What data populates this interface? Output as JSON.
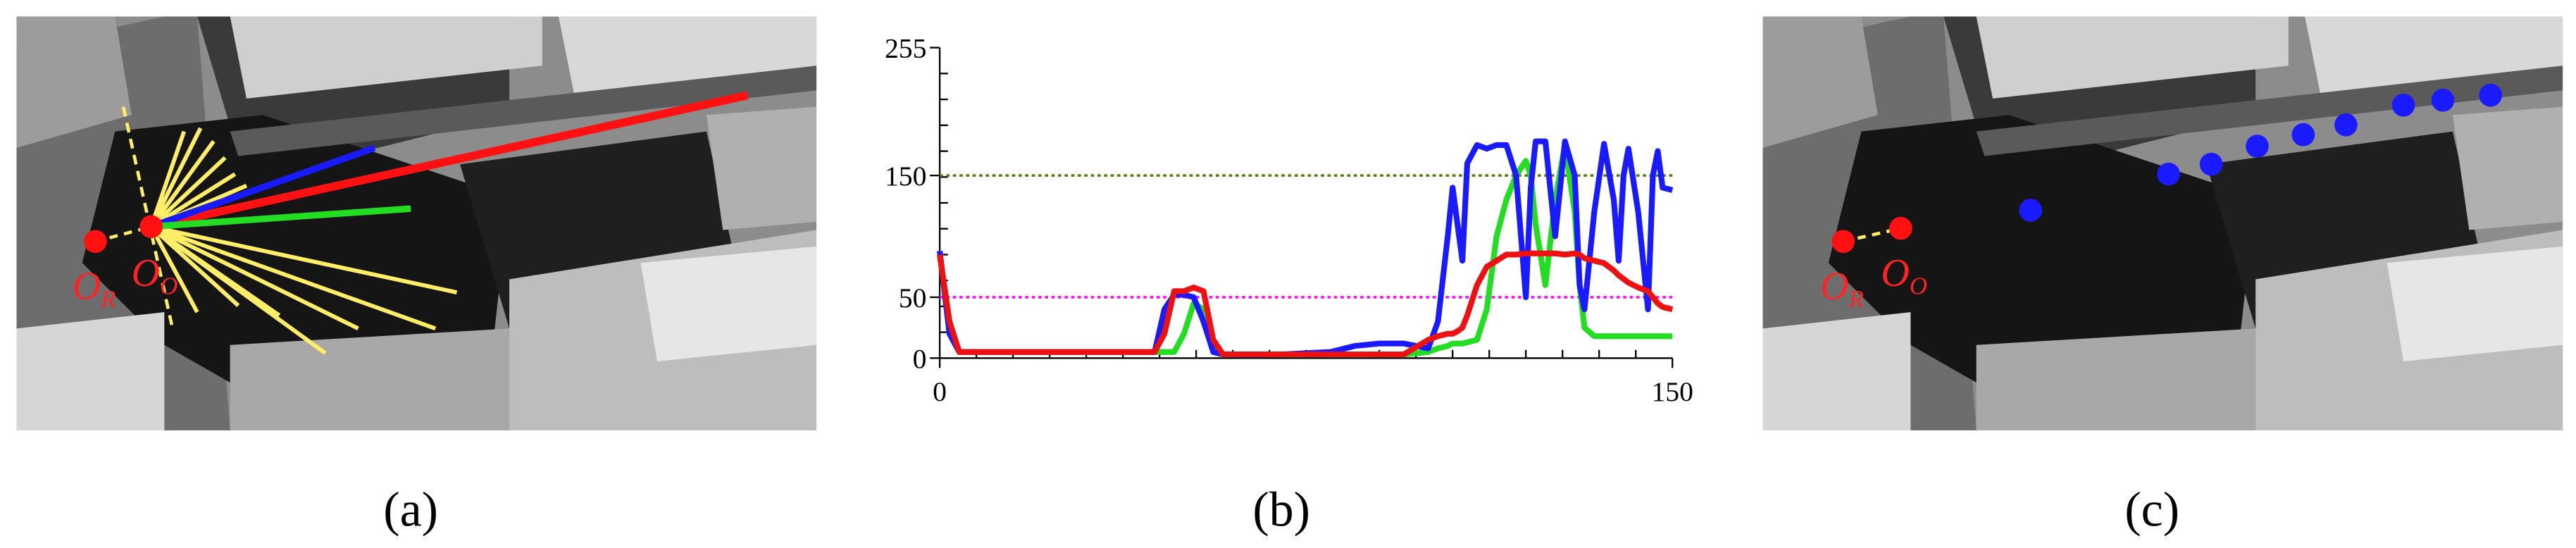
{
  "panel_labels": [
    "(a)",
    "(b)",
    "(c)"
  ],
  "origin_labels": {
    "reference": {
      "main": "O",
      "sub": "R"
    },
    "observer": {
      "main": "O",
      "sub": "O"
    }
  },
  "chart_data": {
    "type": "line",
    "x": [
      0,
      2,
      4,
      10,
      20,
      30,
      40,
      44,
      46,
      48,
      50,
      52,
      54,
      56,
      58,
      60,
      70,
      80,
      85,
      90,
      95,
      100,
      102,
      104,
      105,
      106,
      107,
      108,
      110,
      112,
      114,
      116,
      118,
      120,
      121,
      122,
      124,
      126,
      128,
      130,
      131,
      132,
      134,
      136,
      138,
      139,
      140,
      141,
      143,
      145,
      146,
      147,
      148,
      150
    ],
    "series": [
      {
        "color": "#1a1aff",
        "values": [
          88,
          20,
          5,
          5,
          5,
          5,
          5,
          5,
          40,
          52,
          52,
          50,
          30,
          5,
          3,
          3,
          3,
          5,
          10,
          12,
          12,
          8,
          30,
          100,
          140,
          110,
          80,
          160,
          175,
          172,
          175,
          175,
          150,
          50,
          140,
          178,
          178,
          100,
          178,
          150,
          60,
          40,
          120,
          176,
          130,
          80,
          150,
          172,
          120,
          40,
          150,
          170,
          140,
          138
        ]
      },
      {
        "color": "#22dd22",
        "values": [
          88,
          20,
          5,
          5,
          5,
          5,
          5,
          5,
          5,
          5,
          20,
          45,
          40,
          8,
          3,
          3,
          3,
          3,
          3,
          3,
          3,
          5,
          8,
          10,
          12,
          12,
          12,
          13,
          15,
          40,
          100,
          130,
          150,
          162,
          150,
          110,
          60,
          130,
          175,
          120,
          60,
          25,
          18,
          18,
          18,
          18,
          18,
          18,
          18,
          18,
          18,
          18,
          18,
          18
        ]
      },
      {
        "color": "#ee1111",
        "values": [
          85,
          30,
          5,
          5,
          5,
          5,
          5,
          5,
          20,
          55,
          55,
          58,
          55,
          15,
          3,
          3,
          3,
          3,
          3,
          3,
          3,
          15,
          18,
          20,
          20,
          22,
          25,
          35,
          60,
          75,
          80,
          85,
          85,
          86,
          86,
          86,
          86,
          86,
          85,
          86,
          85,
          82,
          80,
          78,
          72,
          68,
          65,
          62,
          58,
          55,
          50,
          45,
          42,
          40
        ]
      }
    ],
    "xlim": [
      0,
      150
    ],
    "ylim": [
      0,
      255
    ],
    "xticks": [
      0,
      150
    ],
    "yticks": [
      0,
      50,
      150,
      255
    ],
    "hlines": [
      {
        "value": 150,
        "color": "#4f7f00"
      },
      {
        "value": 50,
        "color": "#ff00ff"
      }
    ]
  }
}
